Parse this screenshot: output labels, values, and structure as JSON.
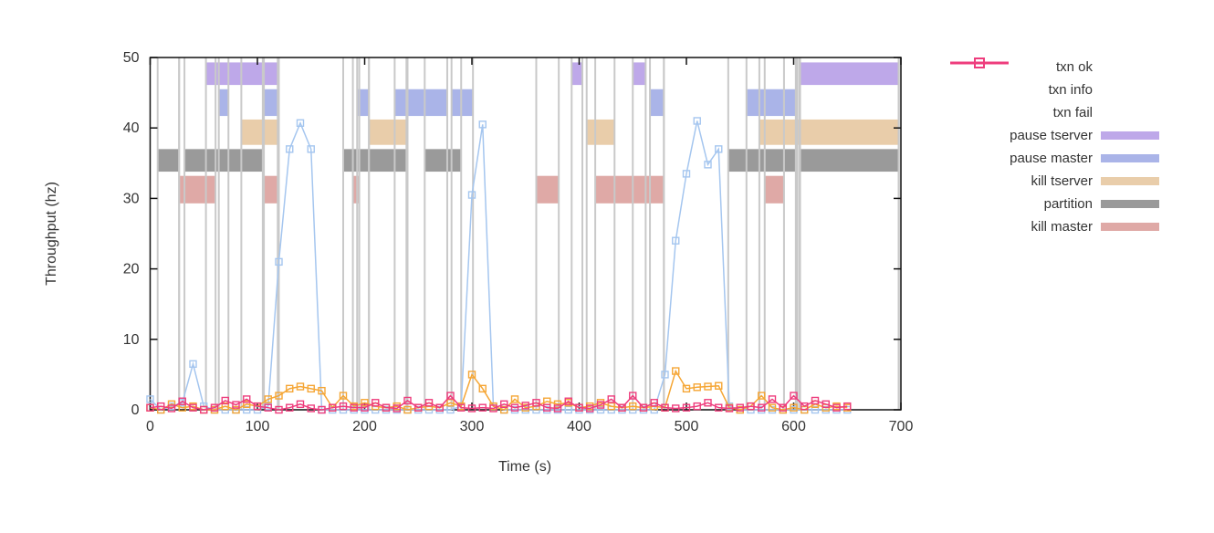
{
  "chart_data": {
    "type": "line",
    "title": "",
    "xlabel": "Time (s)",
    "ylabel": "Throughput (hz)",
    "xlim": [
      0,
      700
    ],
    "ylim": [
      0,
      50
    ],
    "x_ticks": [
      0,
      100,
      200,
      300,
      400,
      500,
      600,
      700
    ],
    "y_ticks": [
      0,
      10,
      20,
      30,
      40,
      50
    ],
    "grid": false,
    "legend_position": "right-outside",
    "event_line_color": "#c9c9c9",
    "border_color": "#111111",
    "series": [
      {
        "name": "txn ok",
        "color": "#a5c6ef",
        "marker": "open-square",
        "x_start": 0,
        "x_step": 10,
        "values": [
          1.5,
          0,
          0.5,
          1,
          6.5,
          0.5,
          0,
          0,
          0,
          0,
          0,
          0.5,
          21,
          37,
          40.7,
          37,
          0,
          0,
          0,
          0,
          0,
          0,
          0,
          0,
          0,
          0,
          0,
          0,
          0,
          0.5,
          30.5,
          40.5,
          0.5,
          0,
          0,
          0,
          0,
          0,
          0,
          0,
          0,
          0,
          0,
          0,
          0,
          0,
          0,
          0,
          5,
          24,
          33.5,
          41,
          34.8,
          37,
          0.5,
          0,
          0,
          0,
          0,
          0,
          0,
          0,
          0,
          0,
          0,
          0
        ]
      },
      {
        "name": "txn info",
        "color": "#f5a635",
        "marker": "open-square",
        "x_start": 0,
        "x_step": 10,
        "values": [
          0.3,
          0,
          0.8,
          0.3,
          0.5,
          0,
          0,
          0.5,
          0,
          0.8,
          0.5,
          1.5,
          2,
          3,
          3.3,
          3,
          2.7,
          0.3,
          2,
          0.5,
          1,
          0.5,
          0.3,
          0.5,
          0,
          0.3,
          0.5,
          0.3,
          1,
          0.5,
          5,
          3,
          0.5,
          0,
          1.5,
          0.3,
          0.5,
          1.2,
          0.8,
          1,
          0.3,
          0.5,
          1,
          0.5,
          0.3,
          0.5,
          0.3,
          0.5,
          0.3,
          5.5,
          3,
          3.2,
          3.3,
          3.4,
          0.3,
          0,
          0.5,
          2,
          0.3,
          0,
          0.3,
          0,
          0.8,
          0.3,
          0.5,
          0.3
        ]
      },
      {
        "name": "txn fail",
        "color": "#ee3d7d",
        "marker": "open-square",
        "x_start": 0,
        "x_step": 10,
        "values": [
          0.3,
          0.5,
          0.2,
          1.2,
          0.3,
          0,
          0.3,
          1.3,
          0.7,
          1.5,
          0.5,
          0.3,
          0,
          0.3,
          0.8,
          0.2,
          0,
          0.3,
          0.5,
          0.3,
          0.3,
          1,
          0.3,
          0.2,
          1.3,
          0.3,
          1,
          0.3,
          2,
          0.3,
          0.2,
          0.3,
          0.2,
          0.8,
          0.3,
          0.6,
          1,
          0.3,
          0.2,
          1.2,
          0.3,
          0.2,
          0.7,
          1.5,
          0.3,
          2,
          0.3,
          1,
          0.3,
          0.2,
          0.3,
          0.5,
          1,
          0.3,
          0.2,
          0.3,
          0.5,
          0.3,
          1.5,
          0.3,
          2,
          0.5,
          1.3,
          0.8,
          0.3,
          0.5
        ]
      }
    ],
    "event_bands": [
      {
        "name": "pause tserver",
        "color": "#bea8e9",
        "y_range": [
          46.1,
          49.3
        ],
        "intervals": [
          [
            52,
            119
          ],
          [
            393,
            403
          ],
          [
            450,
            462
          ],
          [
            606,
            698
          ]
        ]
      },
      {
        "name": "pause master",
        "color": "#aab4e8",
        "y_range": [
          41.7,
          45.5
        ],
        "intervals": [
          [
            64,
            73
          ],
          [
            106,
            120
          ],
          [
            193,
            204
          ],
          [
            228,
            277
          ],
          [
            281,
            301
          ],
          [
            466,
            479
          ],
          [
            556,
            603
          ]
        ]
      },
      {
        "name": "kill tserver",
        "color": "#e9cdaa",
        "y_range": [
          37.6,
          41.2
        ],
        "intervals": [
          [
            85,
            120
          ],
          [
            204,
            239
          ],
          [
            407,
            433
          ],
          [
            568,
            698
          ]
        ]
      },
      {
        "name": "partition",
        "color": "#9a9a9a",
        "y_range": [
          33.8,
          37.0
        ],
        "intervals": [
          [
            7,
            27
          ],
          [
            32,
            105
          ],
          [
            180,
            240
          ],
          [
            256,
            290
          ],
          [
            539,
            602
          ],
          [
            605,
            698
          ]
        ]
      },
      {
        "name": "kill master",
        "color": "#dfa9a6",
        "y_range": [
          29.3,
          33.2
        ],
        "intervals": [
          [
            27,
            61
          ],
          [
            106,
            120
          ],
          [
            189,
            195
          ],
          [
            360,
            381
          ],
          [
            415,
            479
          ],
          [
            573,
            591
          ]
        ]
      }
    ]
  },
  "legend": {
    "items": [
      {
        "label": "txn ok",
        "color": "#a5c6ef",
        "swatch": "line-marker"
      },
      {
        "label": "txn info",
        "color": "#f5a635",
        "swatch": "line-marker"
      },
      {
        "label": "txn fail",
        "color": "#ee3d7d",
        "swatch": "line-marker"
      },
      {
        "label": "pause tserver",
        "color": "#bea8e9",
        "swatch": "bar"
      },
      {
        "label": "pause master",
        "color": "#aab4e8",
        "swatch": "bar"
      },
      {
        "label": "kill tserver",
        "color": "#e9cdaa",
        "swatch": "bar"
      },
      {
        "label": "partition",
        "color": "#9a9a9a",
        "swatch": "bar"
      },
      {
        "label": "kill master",
        "color": "#dfa9a6",
        "swatch": "bar"
      }
    ]
  }
}
